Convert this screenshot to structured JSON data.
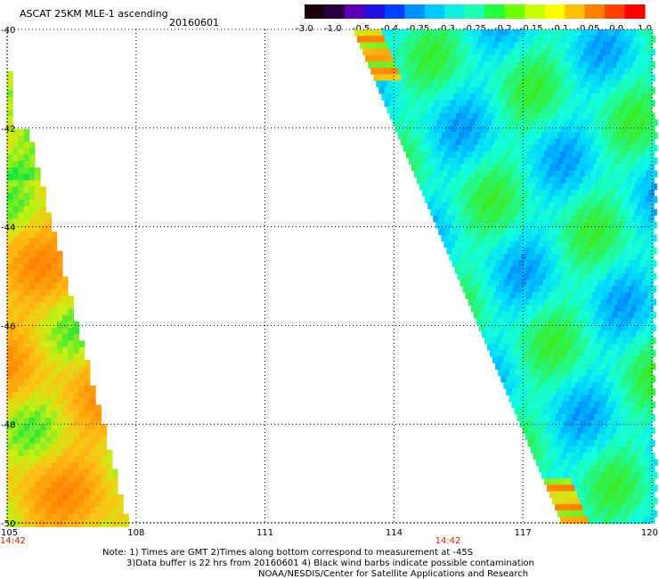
{
  "header": {
    "title": "ASCAT 25KM MLE-1 ascending",
    "date": "20160601"
  },
  "colorbar": {
    "labels": [
      "-3.0",
      "-1.0",
      "-0.5",
      "-0.4",
      "-0.35",
      "-0.3",
      "-0.25",
      "-0.2",
      "-0.15",
      "-0.1",
      "-0.05",
      "0.0",
      "1.0"
    ],
    "colors": [
      "#1a0010",
      "#2a0040",
      "#5a00b0",
      "#2010e0",
      "#0040ff",
      "#0090ff",
      "#00c8ff",
      "#10f0e0",
      "#20ffb0",
      "#20ff40",
      "#70ff00",
      "#c8ff00",
      "#ffff00",
      "#ffc000",
      "#ff8000",
      "#ff4000",
      "#ff0000"
    ]
  },
  "map": {
    "lat_labels": [
      "-40",
      "-42",
      "-44",
      "-46",
      "-48",
      "-50"
    ],
    "lon_labels": [
      "105",
      "108",
      "111",
      "114",
      "117",
      "120"
    ],
    "time_labels": [
      "14:42",
      "14:42"
    ],
    "time_color": "#cc2200"
  },
  "notes": {
    "line1": "Note: 1) Times are GMT 2)Times along bottom correspond to measurement at -45S",
    "line2": "3)Data buffer is 22 hrs from 20160601 4) Black wind barbs indicate possible contamination",
    "line3": "NOAA/NESDIS/Center for Satellite Applications and Research"
  }
}
